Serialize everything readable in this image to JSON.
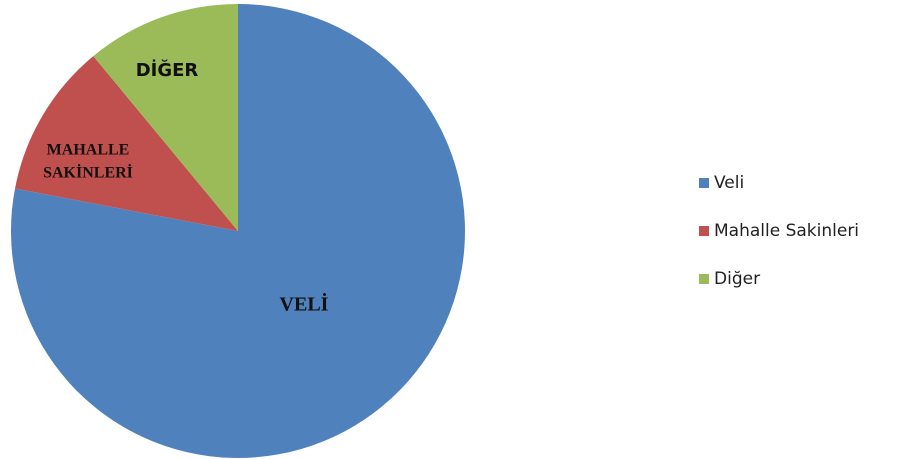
{
  "chart_data": {
    "type": "pie",
    "categories": [
      "Veli",
      "Mahalle Sakinleri",
      "Diğer"
    ],
    "values": [
      78,
      11,
      11
    ],
    "colors": [
      "#4f81bd",
      "#c0504d",
      "#9bbb59"
    ],
    "data_labels": [
      [
        "VELİ"
      ],
      [
        "MAHALLE",
        "SAKİNLERİ"
      ],
      [
        "DİĞER"
      ]
    ],
    "legend": "right"
  }
}
